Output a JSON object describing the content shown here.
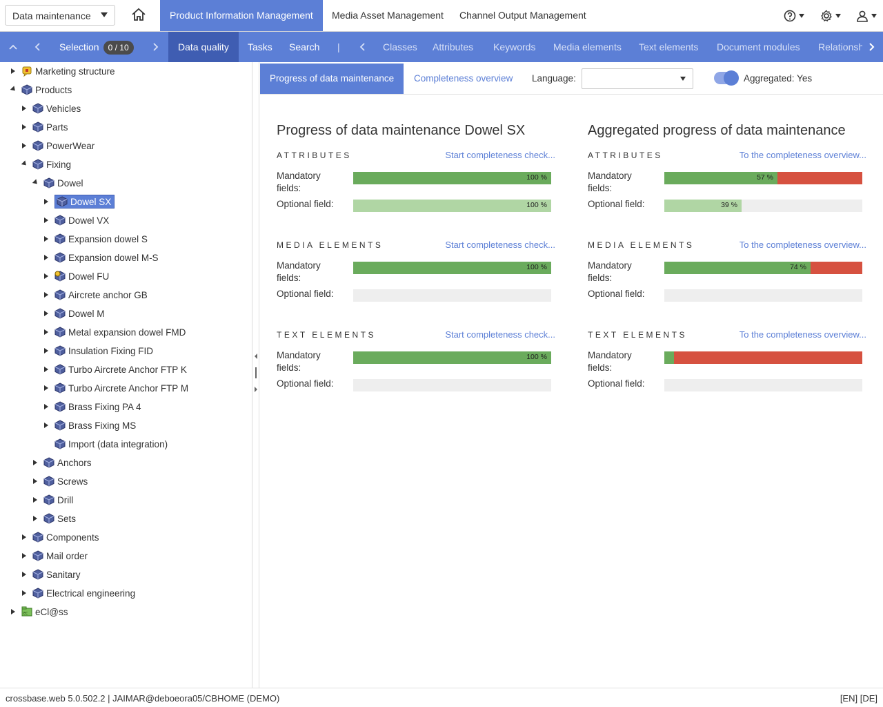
{
  "header": {
    "module_select_value": "Data maintenance",
    "app_tabs": [
      "Product Information Management",
      "Media Asset Management",
      "Channel Output Management"
    ]
  },
  "navbar": {
    "selection_label": "Selection",
    "selection_count": "0 / 10",
    "items": [
      "Data quality",
      "Tasks",
      "Search"
    ],
    "separator": "|",
    "categories": [
      "Classes",
      "Attributes",
      "Keywords",
      "Media elements",
      "Text elements",
      "Document modules",
      "Relationsh"
    ]
  },
  "tree": {
    "nodes": [
      {
        "label": "Marketing structure"
      },
      {
        "label": "Products"
      },
      {
        "label": "Vehicles"
      },
      {
        "label": "Parts"
      },
      {
        "label": "PowerWear"
      },
      {
        "label": "Fixing"
      },
      {
        "label": "Dowel"
      },
      {
        "label": "Dowel SX"
      },
      {
        "label": "Dowel VX"
      },
      {
        "label": "Expansion dowel S"
      },
      {
        "label": "Expansion dowel M-S"
      },
      {
        "label": "Dowel FU"
      },
      {
        "label": "Aircrete anchor GB"
      },
      {
        "label": "Dowel M"
      },
      {
        "label": "Metal expansion dowel FMD"
      },
      {
        "label": "Insulation Fixing FID"
      },
      {
        "label": "Turbo Aircrete Anchor FTP K"
      },
      {
        "label": "Turbo Aircrete Anchor FTP M"
      },
      {
        "label": "Brass Fixing PA 4"
      },
      {
        "label": "Brass Fixing MS"
      },
      {
        "label": "Import (data integration)"
      },
      {
        "label": "Anchors"
      },
      {
        "label": "Screws"
      },
      {
        "label": "Drill"
      },
      {
        "label": "Sets"
      },
      {
        "label": "Components"
      },
      {
        "label": "Mail order"
      },
      {
        "label": "Sanitary"
      },
      {
        "label": "Electrical engineering"
      },
      {
        "label": "eCl@ss"
      }
    ]
  },
  "content": {
    "tabs": [
      "Progress of data maintenance",
      "Completeness overview"
    ],
    "language_label": "Language:",
    "language_value": "",
    "aggregated_label": "Aggregated: Yes",
    "aggregated_on": true,
    "left": {
      "title": "Progress of data maintenance Dowel SX",
      "link": "Start completeness check...",
      "sections": [
        {
          "heading": "ATTRIBUTES",
          "mandatory": {
            "label": "Mandatory fields:",
            "value": 100,
            "text": "100 %"
          },
          "optional": {
            "label": "Optional field:",
            "value": 100,
            "text": "100 %"
          }
        },
        {
          "heading": "MEDIA ELEMENTS",
          "mandatory": {
            "label": "Mandatory fields:",
            "value": 100,
            "text": "100 %"
          },
          "optional": {
            "label": "Optional field:",
            "value": 0,
            "text": ""
          }
        },
        {
          "heading": "TEXT ELEMENTS",
          "mandatory": {
            "label": "Mandatory fields:",
            "value": 100,
            "text": "100 %"
          },
          "optional": {
            "label": "Optional field:",
            "value": 0,
            "text": ""
          }
        }
      ]
    },
    "right": {
      "title": "Aggregated progress of data maintenance",
      "link": "To the completeness overview...",
      "sections": [
        {
          "heading": "ATTRIBUTES",
          "mandatory": {
            "label": "Mandatory fields:",
            "value": 57,
            "text": "57 %"
          },
          "optional": {
            "label": "Optional field:",
            "value": 39,
            "text": "39 %"
          }
        },
        {
          "heading": "MEDIA ELEMENTS",
          "mandatory": {
            "label": "Mandatory fields:",
            "value": 74,
            "text": "74 %"
          },
          "optional": {
            "label": "Optional field:",
            "value": 0,
            "text": ""
          }
        },
        {
          "heading": "TEXT ELEMENTS",
          "mandatory": {
            "label": "Mandatory fields:",
            "value": 5,
            "text": ""
          },
          "optional": {
            "label": "Optional field:",
            "value": 0,
            "text": ""
          }
        }
      ]
    }
  },
  "colors": {
    "accent": "#5c7fd6",
    "mandatory_fill": "#6aab5c",
    "optional_fill": "#b0d6a4",
    "missing": "#d65140",
    "empty": "#eeeeee"
  },
  "status": {
    "left": "crossbase.web 5.0.502.2 | JAIMAR@deboeora05/CBHOME (DEMO)",
    "right": "[EN] [DE]"
  }
}
